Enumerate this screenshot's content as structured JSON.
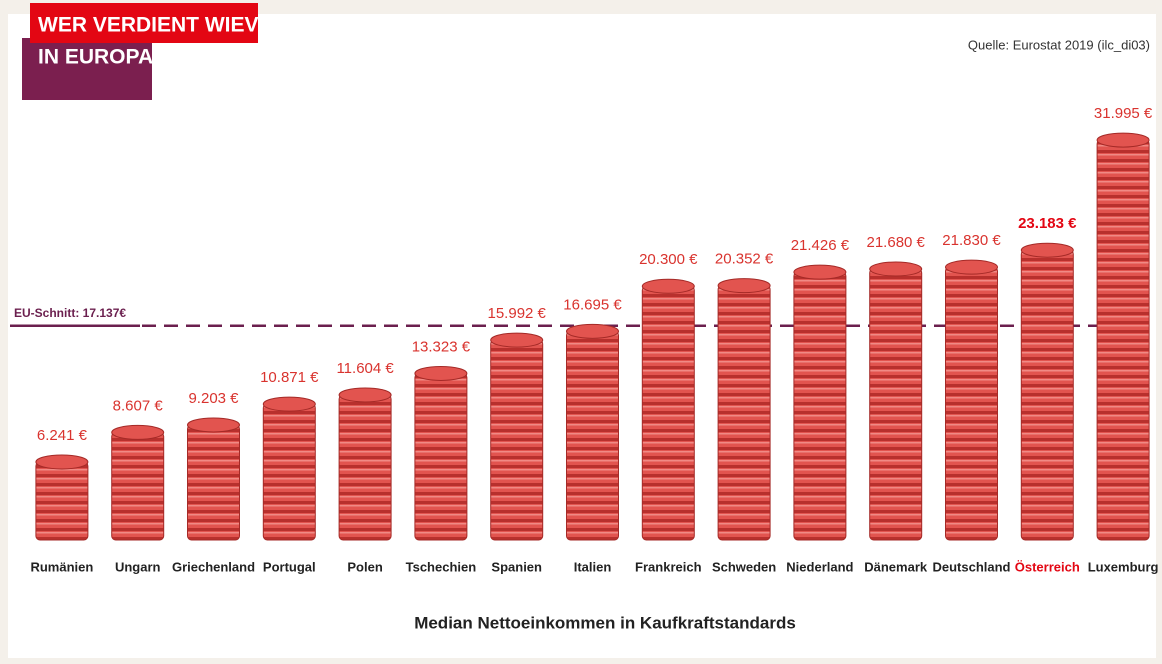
{
  "chart_data": {
    "type": "bar",
    "title": "WER VERDIENT WIEVIEL",
    "subtitle": "IN EUROPA?",
    "source": "Quelle: Eurostat 2019 (ilc_di03)",
    "x_label": "Median Nettoeinkommen in Kaufkraftstandards",
    "categories": [
      "Rumänien",
      "Ungarn",
      "Griechenland",
      "Portugal",
      "Polen",
      "Tschechien",
      "Spanien",
      "Italien",
      "Frankreich",
      "Schweden",
      "Niederland",
      "Dänemark",
      "Deutschland",
      "Österreich",
      "Luxemburg"
    ],
    "values": [
      6241,
      8607,
      9203,
      10871,
      11604,
      13323,
      15992,
      16695,
      20300,
      20352,
      21426,
      21680,
      21830,
      23183,
      31995
    ],
    "value_labels": [
      "6.241 €",
      "8.607 €",
      "9.203 €",
      "10.871 €",
      "11.604 €",
      "13.323 €",
      "15.992 €",
      "16.695 €",
      "20.300 €",
      "20.352 €",
      "21.426 €",
      "21.680 €",
      "21.830 €",
      "23.183 €",
      "31.995 €"
    ],
    "label_colors": [
      "#222",
      "#222",
      "#222",
      "#222",
      "#222",
      "#222",
      "#222",
      "#222",
      "#222",
      "#222",
      "#222",
      "#222",
      "#222",
      "#e30613",
      "#222"
    ],
    "color": "#e2544f",
    "reference_line": {
      "value": 17137,
      "label": "EU-Schnitt: 17.137€",
      "color": "#6b1f4e"
    },
    "ylim": [
      0,
      32000
    ]
  }
}
